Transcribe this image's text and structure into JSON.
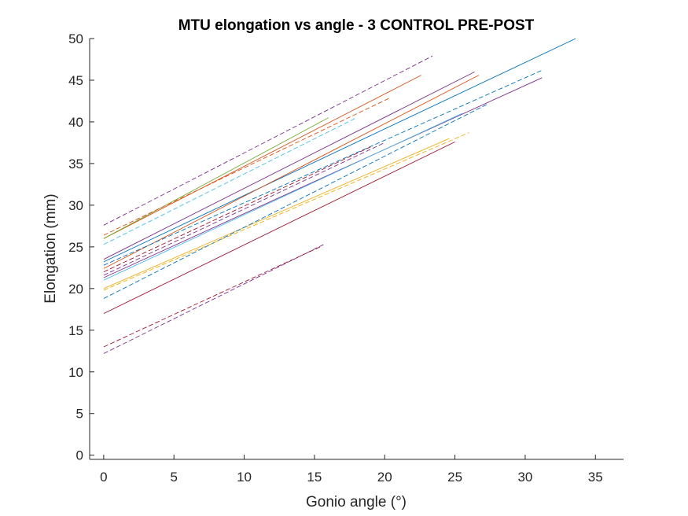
{
  "chart_data": {
    "type": "line",
    "title": "MTU elongation vs angle - 3 CONTROL PRE-POST",
    "xlabel": "Gonio angle (°)",
    "ylabel": "Elongation (mm)",
    "xlim": [
      -1,
      37
    ],
    "ylim": [
      -0.5,
      50
    ],
    "xticks": [
      0,
      5,
      10,
      15,
      20,
      25,
      30,
      35
    ],
    "yticks": [
      0,
      5,
      10,
      15,
      20,
      25,
      30,
      35,
      40,
      45,
      50
    ],
    "grid": false,
    "legend": "none",
    "series": [
      {
        "color": "#0072BD",
        "dash": false,
        "x": [
          0,
          33.6
        ],
        "y": [
          23.2,
          50.0
        ]
      },
      {
        "color": "#D95319",
        "dash": false,
        "x": [
          0,
          22.6
        ],
        "y": [
          26.0,
          45.6
        ]
      },
      {
        "color": "#7E2F8E",
        "dash": false,
        "x": [
          0,
          26.4
        ],
        "y": [
          23.5,
          46.0
        ]
      },
      {
        "color": "#D95319",
        "dash": false,
        "x": [
          0,
          26.7
        ],
        "y": [
          22.4,
          45.6
        ]
      },
      {
        "color": "#7E2F8E",
        "dash": false,
        "x": [
          0,
          31.2
        ],
        "y": [
          21.3,
          45.3
        ]
      },
      {
        "color": "#A2142F",
        "dash": false,
        "x": [
          0,
          25.0
        ],
        "y": [
          17.0,
          37.6
        ]
      },
      {
        "color": "#EDB120",
        "dash": false,
        "x": [
          0,
          24.6
        ],
        "y": [
          20.0,
          38.0
        ]
      },
      {
        "color": "#77AC30",
        "dash": false,
        "x": [
          0,
          16.0
        ],
        "y": [
          26.0,
          40.5
        ]
      },
      {
        "color": "#4DBEEE",
        "dash": false,
        "x": [
          0,
          25.5
        ],
        "y": [
          21.0,
          41.0
        ]
      },
      {
        "color": "#7E2F8E",
        "dash": true,
        "x": [
          0,
          23.4
        ],
        "y": [
          27.6,
          47.9
        ]
      },
      {
        "color": "#0072BD",
        "dash": true,
        "x": [
          0,
          31.2
        ],
        "y": [
          22.8,
          46.2
        ]
      },
      {
        "color": "#D95319",
        "dash": true,
        "x": [
          0,
          20.4
        ],
        "y": [
          26.4,
          42.9
        ]
      },
      {
        "color": "#4DBEEE",
        "dash": true,
        "x": [
          0,
          18.0
        ],
        "y": [
          25.3,
          40.5
        ]
      },
      {
        "color": "#0072BD",
        "dash": true,
        "x": [
          0,
          27.4
        ],
        "y": [
          18.8,
          42.2
        ]
      },
      {
        "color": "#EDB120",
        "dash": true,
        "x": [
          0,
          26.0
        ],
        "y": [
          19.8,
          38.7
        ]
      },
      {
        "color": "#7E2F8E",
        "dash": true,
        "x": [
          0,
          20.0
        ],
        "y": [
          21.6,
          37.5
        ]
      },
      {
        "color": "#A2142F",
        "dash": true,
        "x": [
          0,
          19.0
        ],
        "y": [
          22.0,
          37.0
        ]
      },
      {
        "color": "#7E2F8E",
        "dash": true,
        "x": [
          0,
          15.8
        ],
        "y": [
          12.2,
          25.4
        ]
      },
      {
        "color": "#A2142F",
        "dash": true,
        "x": [
          0,
          15.4
        ],
        "y": [
          13.0,
          25.0
        ]
      }
    ]
  }
}
